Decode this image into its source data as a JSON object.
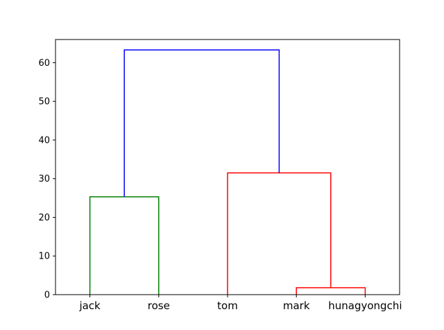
{
  "chart_data": {
    "type": "dendrogram",
    "title": "",
    "xlabel": "",
    "ylabel": "",
    "ylim": [
      0,
      66
    ],
    "yticks": [
      0,
      10,
      20,
      30,
      40,
      50,
      60
    ],
    "leaves": [
      "jack",
      "rose",
      "tom",
      "mark",
      "hunagyongchi"
    ],
    "links": [
      {
        "id": "link-mark-hunagyongchi",
        "left": 3,
        "right": 4,
        "left_height": 0,
        "right_height": 0,
        "height": 1.8,
        "color": "#ff0000"
      },
      {
        "id": "link-jack-rose",
        "left": 0,
        "right": 1,
        "left_height": 0,
        "right_height": 0,
        "height": 25.3,
        "color": "#008000"
      },
      {
        "id": "link-tom-cluster",
        "left": 2,
        "right": 3.5,
        "left_height": 0,
        "right_height": 1.8,
        "height": 31.5,
        "color": "#ff0000"
      },
      {
        "id": "link-root",
        "left": 0.5,
        "right": 2.75,
        "left_height": 25.3,
        "right_height": 31.5,
        "height": 63.3,
        "color": "#0000ff"
      }
    ]
  }
}
